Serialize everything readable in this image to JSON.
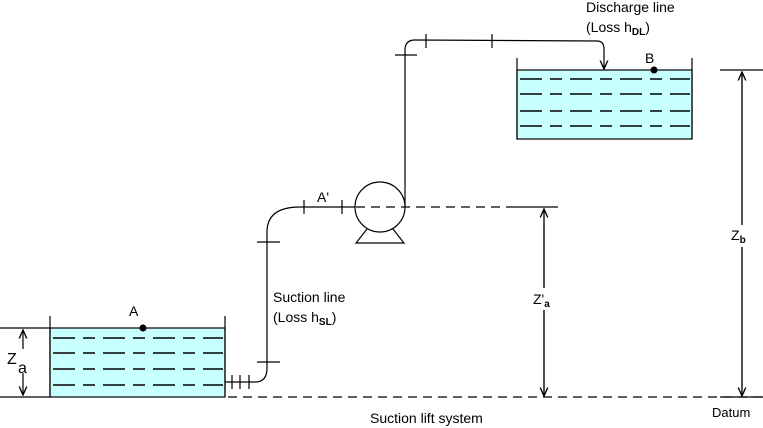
{
  "labels": {
    "discharge_line": "Discharge line",
    "discharge_loss_prefix": "(Loss h",
    "discharge_loss_sub": "DL",
    "suction_line": "Suction line",
    "suction_loss_prefix": "(Loss h",
    "suction_loss_sub": "SL",
    "close_paren": ")",
    "point_a": "A",
    "point_a_prime": "A'",
    "point_b": "B",
    "za_main": "Z",
    "za_sub": "a",
    "zpa_main": "Z'",
    "zpa_sub": "a",
    "zb_main": "Z",
    "zb_sub": "b",
    "datum": "Datum",
    "caption": "Suction lift system"
  },
  "colors": {
    "water": "#c8ffff",
    "lines": "#000000"
  }
}
